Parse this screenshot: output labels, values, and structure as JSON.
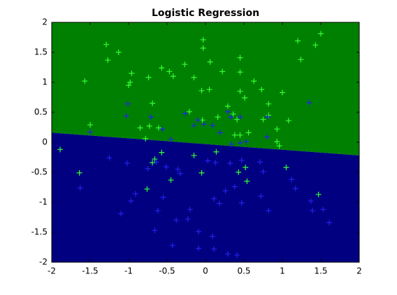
{
  "chart_data": {
    "type": "scatter",
    "title": "Logistic Regression",
    "xlim": [
      -2,
      2
    ],
    "ylim": [
      -2,
      2
    ],
    "xticks": [
      -2,
      -1.5,
      -1,
      -0.5,
      0,
      0.5,
      1,
      1.5,
      2
    ],
    "yticks": [
      -2,
      -1.5,
      -1,
      -0.5,
      0,
      0.5,
      1,
      1.5,
      2
    ],
    "decision_boundary": {
      "x": [
        -2,
        2
      ],
      "y": [
        0.16,
        -0.22
      ],
      "above_color": "#008000",
      "below_color": "#000080"
    },
    "marker": "+",
    "series": [
      {
        "color": "#33ff33",
        "x": [
          1.5,
          1.43,
          1.2,
          1.24,
          -0.03,
          -0.03,
          -1.29,
          -1.13,
          -1.27,
          -1.57,
          -0.96,
          -0.98,
          -1.0,
          -0.57,
          -0.47,
          -0.42,
          -0.74,
          -0.27,
          -0.15,
          0.06,
          0.22,
          0.45,
          0.45,
          0.63,
          0.73,
          1.0,
          -0.05,
          0.05,
          0.45,
          0.51,
          -0.69,
          -0.21,
          0.29,
          0.36,
          0.82,
          0.82,
          0.75,
          1.08,
          0.16,
          -0.04,
          0.41,
          -1.5,
          -0.85,
          -0.73,
          -0.61,
          -0.78,
          0.38,
          0.45,
          0.56,
          0.93,
          0.93,
          0.96,
          0.14,
          -0.15,
          -0.57,
          -0.66,
          -0.69,
          -1.89,
          -1.64,
          1.05,
          0.52,
          0.43,
          0.54,
          -0.45,
          -0.76,
          1.47,
          -0.05
        ],
        "y": [
          1.81,
          1.62,
          1.69,
          1.38,
          1.71,
          1.57,
          1.63,
          1.5,
          1.37,
          1.02,
          1.15,
          1.0,
          0.95,
          1.24,
          1.18,
          1.1,
          1.08,
          1.3,
          1.08,
          1.34,
          1.18,
          1.41,
          1.17,
          1.02,
          0.88,
          0.83,
          0.86,
          0.88,
          0.85,
          0.74,
          0.65,
          0.51,
          0.6,
          0.47,
          0.64,
          0.45,
          0.38,
          0.36,
          0.42,
          0.37,
          0.38,
          0.29,
          0.24,
          0.27,
          0.24,
          0.06,
          0.12,
          0.12,
          0.16,
          0.22,
          0.01,
          -0.06,
          -0.16,
          -0.22,
          -0.17,
          -0.28,
          -0.34,
          -0.12,
          -0.51,
          -0.42,
          -0.42,
          -0.5,
          -0.65,
          -0.63,
          -0.78,
          -0.87,
          -0.51
        ]
      },
      {
        "color": "#2222ee",
        "x": [
          1.35,
          -1.01,
          -1.03,
          -0.71,
          -0.26,
          -0.1,
          -0.15,
          -0.02,
          0.09,
          0.29,
          0.33,
          0.45,
          0.19,
          0.81,
          0.8,
          -1.5,
          -0.56,
          -0.45,
          0.45,
          0.53,
          0.34,
          -1.25,
          -1.02,
          -0.75,
          -0.64,
          -0.51,
          -0.36,
          -0.33,
          0.03,
          0.13,
          0.32,
          0.47,
          0.71,
          0.75,
          1.12,
          1.17,
          -1.63,
          -0.91,
          -0.97,
          -1.1,
          -0.55,
          -0.62,
          -0.38,
          -0.2,
          -0.23,
          0.11,
          0.18,
          0.26,
          0.38,
          0.47,
          0.72,
          0.82,
          1.37,
          1.39,
          1.53,
          1.61,
          -0.66,
          -0.43,
          -0.09,
          -0.09,
          0.09,
          0.11,
          0.29,
          0.41
        ],
        "y": [
          0.66,
          0.64,
          0.44,
          0.42,
          0.48,
          0.37,
          0.28,
          0.3,
          0.28,
          0.51,
          0.42,
          0.42,
          0.16,
          0.42,
          0.09,
          0.17,
          0.22,
          0.05,
          -0.01,
          0.01,
          -0.03,
          -0.26,
          -0.35,
          -0.44,
          -0.33,
          -0.41,
          -0.45,
          -0.52,
          -0.31,
          -0.34,
          -0.35,
          -0.3,
          -0.33,
          -0.49,
          -0.62,
          -0.77,
          -0.76,
          -0.86,
          -0.98,
          -1.19,
          -0.92,
          -1.14,
          -1.3,
          -1.12,
          -1.28,
          -0.94,
          -1.02,
          -0.81,
          -0.74,
          -1.01,
          -0.9,
          -1.14,
          -0.98,
          -1.14,
          -1.12,
          -1.34,
          -1.47,
          -1.72,
          -1.49,
          -1.77,
          -1.57,
          -1.78,
          -1.86,
          -1.88
        ]
      }
    ]
  }
}
